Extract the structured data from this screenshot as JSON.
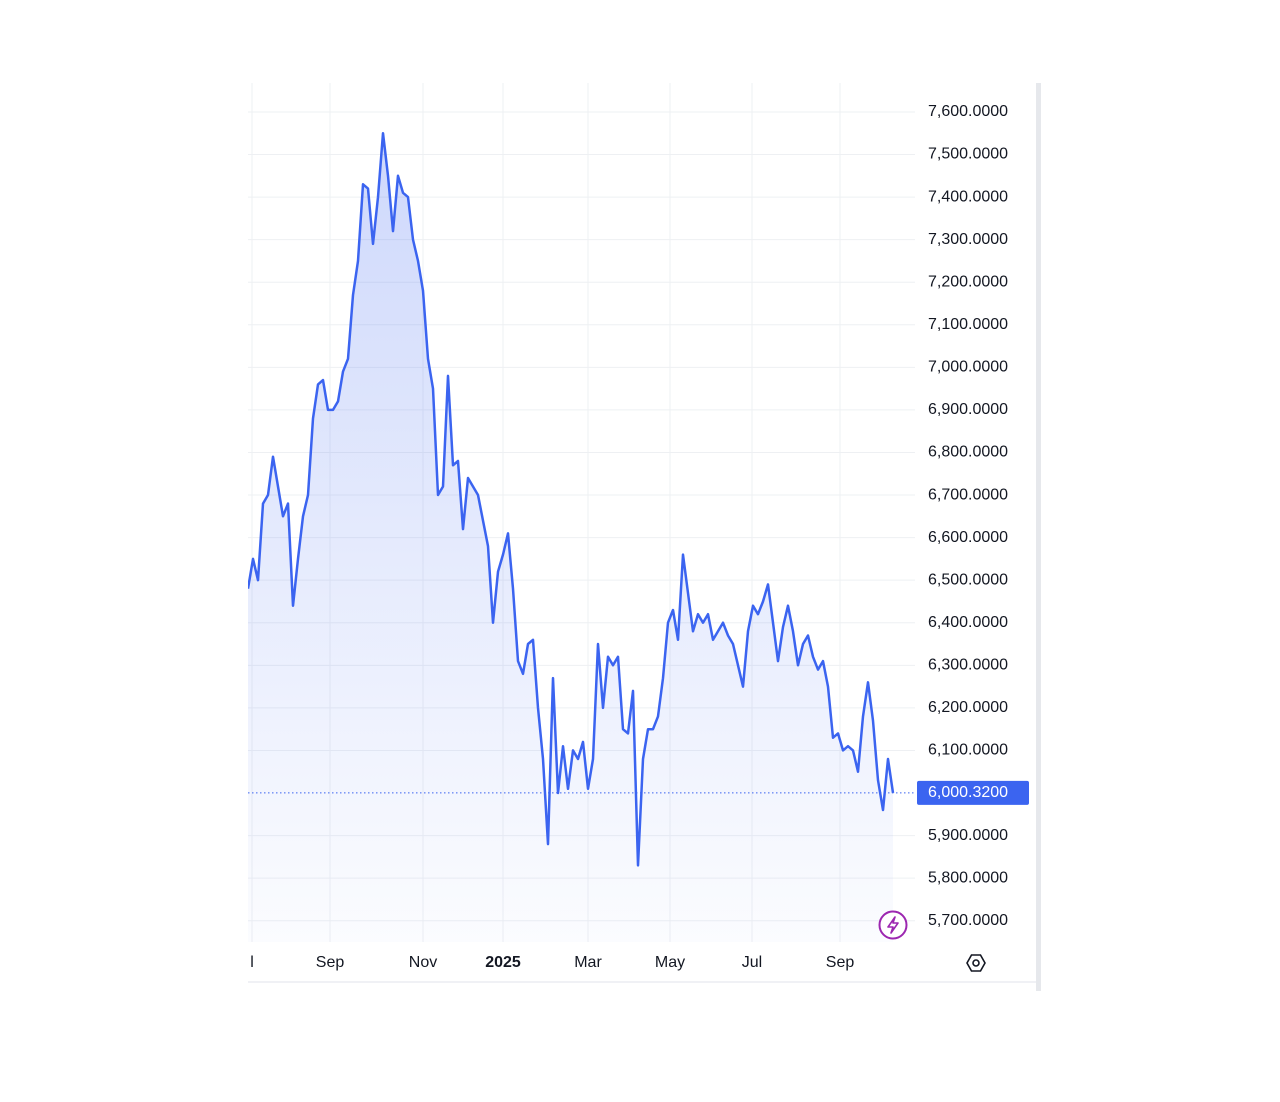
{
  "chart_data": {
    "type": "line",
    "series": [
      {
        "color": "#3b64f0",
        "values": [
          6480,
          6550,
          6500,
          6680,
          6700,
          6790,
          6720,
          6650,
          6680,
          6440,
          6550,
          6650,
          6700,
          6880,
          6960,
          6970,
          6900,
          6900,
          6920,
          6990,
          7020,
          7170,
          7250,
          7430,
          7420,
          7290,
          7400,
          7550,
          7450,
          7320,
          7450,
          7410,
          7400,
          7300,
          7250,
          7180,
          7020,
          6950,
          6700,
          6720,
          6980,
          6770,
          6780,
          6620,
          6740,
          6720,
          6700,
          6640,
          6580,
          6400,
          6520,
          6560,
          6610,
          6480,
          6310,
          6280,
          6350,
          6360,
          6200,
          6080,
          5880,
          6270,
          6000,
          6110,
          6010,
          6100,
          6080,
          6120,
          6010,
          6080,
          6350,
          6200,
          6320,
          6300,
          6320,
          6150,
          6140,
          6240,
          5830,
          6080,
          6150,
          6150,
          6180,
          6270,
          6400,
          6430,
          6360,
          6560,
          6470,
          6380,
          6420,
          6400,
          6420,
          6360,
          6380,
          6400,
          6370,
          6350,
          6300,
          6250,
          6380,
          6440,
          6420,
          6450,
          6490,
          6400,
          6310,
          6390,
          6440,
          6380,
          6300,
          6350,
          6370,
          6320,
          6290,
          6310,
          6250,
          6130,
          6140,
          6100,
          6110,
          6100,
          6050,
          6180,
          6260,
          6170,
          6030,
          5960,
          6080,
          6000.32
        ]
      }
    ],
    "xlim": [
      0,
      133.4
    ],
    "xticks": [
      {
        "value": 0.8,
        "label": "l"
      },
      {
        "value": 16.4,
        "label": "Sep"
      },
      {
        "value": 35,
        "label": "Nov"
      },
      {
        "value": 51,
        "label": "2025"
      },
      {
        "value": 68,
        "label": "Mar"
      },
      {
        "value": 84.4,
        "label": "May"
      },
      {
        "value": 100.8,
        "label": "Jul"
      },
      {
        "value": 118.4,
        "label": "Sep"
      }
    ],
    "ylim": [
      5650,
      7668
    ],
    "yticks": [
      {
        "value": 5700,
        "label": "5,700.0000"
      },
      {
        "value": 5800,
        "label": "5,800.0000"
      },
      {
        "value": 5900,
        "label": "5,900.0000"
      },
      {
        "value": 6100,
        "label": "6,100.0000"
      },
      {
        "value": 6200,
        "label": "6,200.0000"
      },
      {
        "value": 6300,
        "label": "6,300.0000"
      },
      {
        "value": 6400,
        "label": "6,400.0000"
      },
      {
        "value": 6500,
        "label": "6,500.0000"
      },
      {
        "value": 6600,
        "label": "6,600.0000"
      },
      {
        "value": 6700,
        "label": "6,700.0000"
      },
      {
        "value": 6800,
        "label": "6,800.0000"
      },
      {
        "value": 6900,
        "label": "6,900.0000"
      },
      {
        "value": 7000,
        "label": "7,000.0000"
      },
      {
        "value": 7100,
        "label": "7,100.0000"
      },
      {
        "value": 7200,
        "label": "7,200.0000"
      },
      {
        "value": 7300,
        "label": "7,300.0000"
      },
      {
        "value": 7400,
        "label": "7,400.0000"
      },
      {
        "value": 7500,
        "label": "7,500.0000"
      },
      {
        "value": 7600,
        "label": "7,600.0000"
      }
    ],
    "price_line": {
      "value": 6000.32,
      "label": "6,000.3200"
    },
    "grid": true
  }
}
